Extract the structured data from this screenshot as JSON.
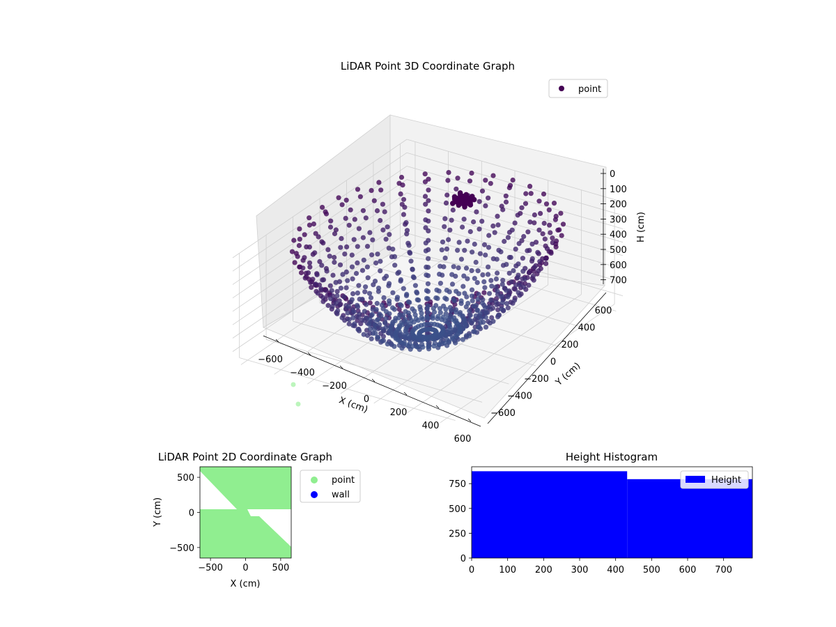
{
  "colors": {
    "point_dark": "#440154",
    "point_mid": "#3b528b",
    "point_2d": "#90ee90",
    "wall": "#0000ff",
    "hist": "#0000ff"
  },
  "chart_data": [
    {
      "type": "scatter",
      "projection": "3d",
      "title": "LiDAR Point 3D Coordinate Graph",
      "xlabel": "X (cm)",
      "ylabel": "Y (cm)",
      "zlabel": "H (cm)",
      "x_ticks": [
        "−600",
        "−400",
        "−200",
        "0",
        "200",
        "400",
        "600"
      ],
      "y_ticks": [
        "−600",
        "−400",
        "−200",
        "0",
        "200",
        "400",
        "600"
      ],
      "z_ticks": [
        "0",
        "100",
        "200",
        "300",
        "400",
        "500",
        "600",
        "700"
      ],
      "xlim": [
        -650,
        650
      ],
      "ylim": [
        -650,
        650
      ],
      "zlim": [
        780,
        0
      ],
      "z_inverted": true,
      "legend": [
        {
          "label": "point",
          "color": "#440154"
        }
      ],
      "legend_position": "top-right",
      "grid": true,
      "series": [
        {
          "name": "point",
          "description_of_shape": "bowl-shaped radial scan; rings of points at increasing radius, depth increases toward center",
          "rings": [
            {
              "radius": 150,
              "h": 760
            },
            {
              "radius": 250,
              "h": 700
            },
            {
              "radius": 350,
              "h": 600
            },
            {
              "radius": 430,
              "h": 480
            },
            {
              "radius": 500,
              "h": 360
            },
            {
              "radius": 560,
              "h": 230
            },
            {
              "radius": 610,
              "h": 100
            }
          ],
          "cluster": {
            "x": -100,
            "y": 520,
            "h": 180
          }
        }
      ]
    },
    {
      "type": "scatter",
      "title": "LiDAR Point 2D Coordinate Graph",
      "xlabel": "X (cm)",
      "ylabel": "Y (cm)",
      "x_ticks": [
        "−500",
        "0",
        "500"
      ],
      "y_ticks": [
        "500",
        "0",
        "−500"
      ],
      "xlim": [
        -650,
        650
      ],
      "ylim": [
        -650,
        650
      ],
      "legend": [
        {
          "label": "point",
          "color": "#90ee90"
        },
        {
          "label": "wall",
          "color": "#0000ff"
        }
      ],
      "legend_position": "outside-right"
    },
    {
      "type": "bar",
      "title": "Height Histogram",
      "x_ticks": [
        "0",
        "100",
        "200",
        "300",
        "400",
        "500",
        "600",
        "700"
      ],
      "y_ticks": [
        "0",
        "250",
        "500",
        "750"
      ],
      "xlim": [
        0,
        780
      ],
      "ylim": [
        0,
        920
      ],
      "legend": [
        {
          "label": "Height",
          "color": "#0000ff"
        }
      ],
      "legend_position": "upper right",
      "bins": [
        {
          "x0": 0,
          "x1": 432,
          "value": 875
        },
        {
          "x0": 432,
          "x1": 780,
          "value": 795
        }
      ]
    }
  ]
}
